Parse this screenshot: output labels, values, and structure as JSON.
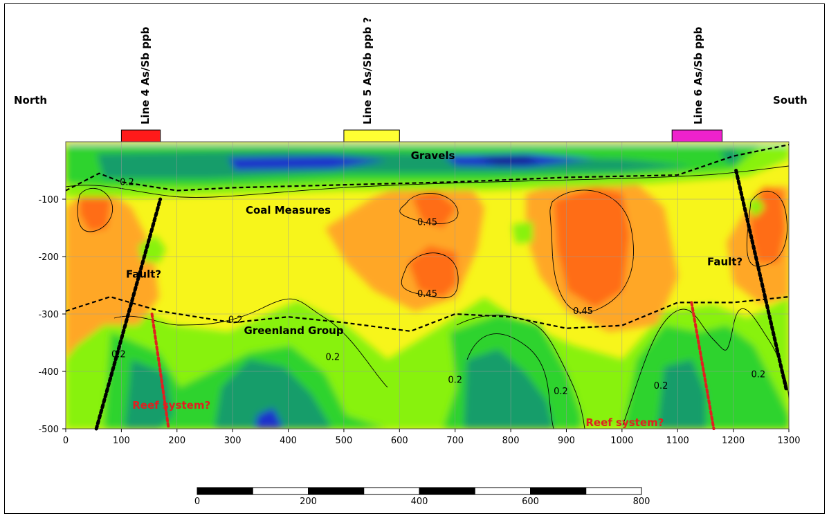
{
  "chart_data": {
    "type": "heatmap",
    "title": "",
    "xlabel": "",
    "ylabel": "",
    "xlim": [
      0,
      1300
    ],
    "ylim": [
      -500,
      0
    ],
    "x_ticks": [
      "0",
      "100",
      "200",
      "300",
      "400",
      "500",
      "600",
      "700",
      "800",
      "900",
      "1000",
      "1100",
      "1200",
      "1300"
    ],
    "y_ticks": [
      "-100",
      "-200",
      "-300",
      "-400",
      "-500"
    ],
    "orientation": {
      "left": "North",
      "right": "South"
    },
    "survey_lines": [
      {
        "label": "Line 4 As/Sb ppb",
        "x_from": 100,
        "x_to": 170,
        "color": "#ff1a1a"
      },
      {
        "label": "Line 5 As/Sb ppb ?",
        "x_from": 500,
        "x_to": 600,
        "color": "#ffff33"
      },
      {
        "label": "Line 6 As/Sb ppb",
        "x_from": 1090,
        "x_to": 1180,
        "color": "#ee22cc"
      }
    ],
    "units": [
      {
        "name": "Gravels",
        "x": 660,
        "y": -30
      },
      {
        "name": "Coal Measures",
        "x": 400,
        "y": -125
      },
      {
        "name": "Greenland Group",
        "x": 410,
        "y": -335
      }
    ],
    "annotations": [
      {
        "text": "Fault?",
        "x": 140,
        "y": -237,
        "color": "#000000"
      },
      {
        "text": "Fault?",
        "x": 1185,
        "y": -215,
        "color": "#000000"
      },
      {
        "text": "Reef system?",
        "x": 190,
        "y": -465,
        "color": "#e02020"
      },
      {
        "text": "Reef system?",
        "x": 1005,
        "y": -495,
        "color": "#e02020"
      }
    ],
    "contour_labels": [
      {
        "text": "0.2",
        "x": 110,
        "y": -75
      },
      {
        "text": "0.45",
        "x": 650,
        "y": -145
      },
      {
        "text": "0.45",
        "x": 650,
        "y": -270
      },
      {
        "text": "0.2",
        "x": 305,
        "y": -315
      },
      {
        "text": "0.45",
        "x": 930,
        "y": -300
      },
      {
        "text": "0.2",
        "x": 95,
        "y": -375
      },
      {
        "text": "0.2",
        "x": 700,
        "y": -420
      },
      {
        "text": "0.2",
        "x": 890,
        "y": -440
      },
      {
        "text": "0.2",
        "x": 1070,
        "y": -430
      },
      {
        "text": "0.2",
        "x": 1245,
        "y": -410
      },
      {
        "text": "0.2",
        "x": 480,
        "y": -380
      }
    ],
    "boundaries": [
      {
        "name": "upper",
        "style": "dashed",
        "points": [
          [
            0,
            -85
          ],
          [
            60,
            -55
          ],
          [
            100,
            -70
          ],
          [
            200,
            -85
          ],
          [
            300,
            -80
          ],
          [
            500,
            -75
          ],
          [
            700,
            -70
          ],
          [
            900,
            -62
          ],
          [
            1100,
            -58
          ],
          [
            1200,
            -25
          ],
          [
            1300,
            -5
          ]
        ]
      },
      {
        "name": "lower",
        "style": "dashed",
        "points": [
          [
            0,
            -295
          ],
          [
            80,
            -270
          ],
          [
            170,
            -295
          ],
          [
            300,
            -315
          ],
          [
            400,
            -305
          ],
          [
            500,
            -315
          ],
          [
            620,
            -330
          ],
          [
            700,
            -300
          ],
          [
            800,
            -305
          ],
          [
            900,
            -325
          ],
          [
            1000,
            -320
          ],
          [
            1100,
            -280
          ],
          [
            1200,
            -280
          ],
          [
            1300,
            -270
          ]
        ]
      }
    ],
    "faults": [
      {
        "label": "Fault?",
        "points": [
          [
            55,
            -500
          ],
          [
            170,
            -100
          ]
        ]
      },
      {
        "label": "Fault?",
        "points": [
          [
            1205,
            -50
          ],
          [
            1295,
            -430
          ]
        ]
      }
    ],
    "reefs": [
      {
        "label": "Reef system?",
        "points": [
          [
            155,
            -300
          ],
          [
            185,
            -500
          ]
        ]
      },
      {
        "label": "Reef system?",
        "points": [
          [
            1125,
            -280
          ],
          [
            1165,
            -500
          ]
        ]
      }
    ],
    "scale_bar": {
      "ticks": [
        "0",
        "200",
        "400",
        "600",
        "800"
      ]
    },
    "grid": true,
    "colors": {
      "deep_blue": "#1a33cc",
      "teal": "#129d6a",
      "green": "#2fd32f",
      "light_green": "#88f20f",
      "yellow": "#f7f51b",
      "orange": "#ffa726",
      "dark_orange": "#ff6d12",
      "red": "#ff2020",
      "magenta": "#ee22cc"
    }
  }
}
